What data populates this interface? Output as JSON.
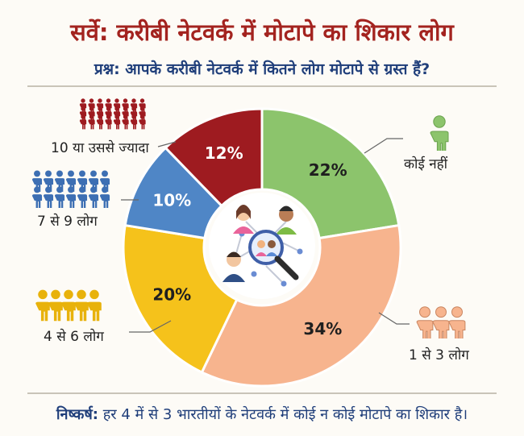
{
  "header": {
    "title": "सर्वे: करीबी नेटवर्क में मोटापे का शिकार लोग",
    "question": "प्रश्न: आपके करीबी नेटवर्क में कितने लोग मोटापे से ग्रस्त हैं?"
  },
  "footer": {
    "label": "निष्कर्ष:",
    "text": "हर 4 में से 3 भारतीयों के नेटवर्क में कोई न कोई मोटापे का शिकार है।"
  },
  "chart_data": {
    "type": "pie",
    "style": "donut",
    "categories": [
      "कोई नहीं",
      "1 से 3 लोग",
      "4 से 6 लोग",
      "7 से 9 लोग",
      "10 या उससे ज्यादा"
    ],
    "values": [
      22,
      34,
      20,
      10,
      12
    ],
    "value_labels": [
      "22%",
      "34%",
      "20%",
      "10%",
      "12%"
    ],
    "unit": "%",
    "colors": [
      "#8cc46c",
      "#f7b48e",
      "#f5c21b",
      "#4f86c6",
      "#9e1b20"
    ],
    "label_colors": [
      "#1f1f1f",
      "#1f1f1f",
      "#1f1f1f",
      "#ffffff",
      "#ffffff"
    ],
    "icons": [
      "person-figure-icon",
      "person-figure-icon",
      "person-figure-icon",
      "person-figure-icon",
      "person-figure-icon"
    ],
    "center_icon": "people-network-magnifier-icon"
  }
}
